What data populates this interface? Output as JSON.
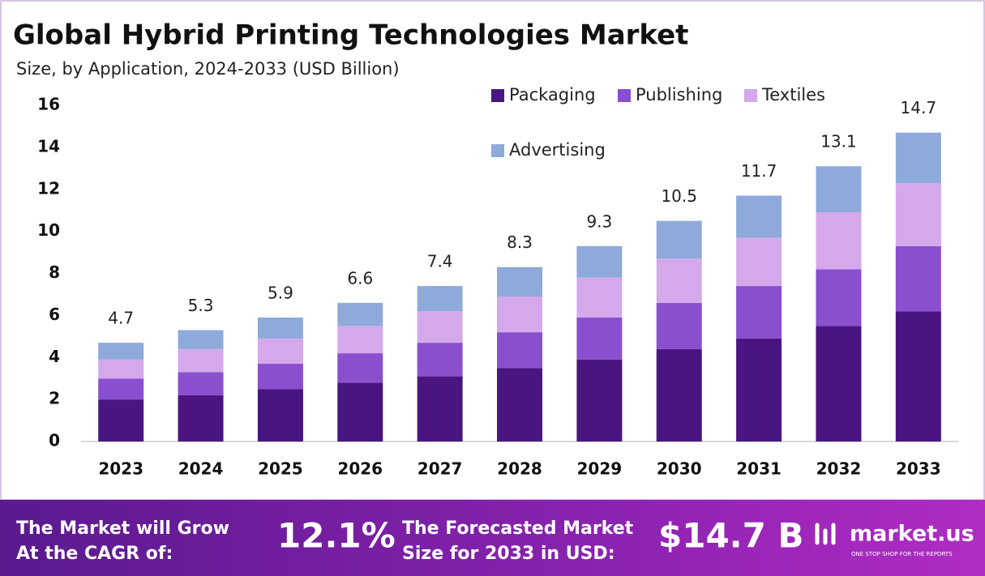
{
  "chart_data": {
    "type": "stacked_bar",
    "title": "Global Hybrid Printing Technologies Market",
    "subtitle": "Size, by Application, 2024-2033 (USD Billion)",
    "categories": [
      "2023",
      "2024",
      "2025",
      "2026",
      "2027",
      "2028",
      "2029",
      "2030",
      "2031",
      "2032",
      "2033"
    ],
    "series": [
      {
        "name": "Packaging",
        "color": "#4a1580",
        "values": [
          2.0,
          2.2,
          2.5,
          2.8,
          3.1,
          3.5,
          3.9,
          4.4,
          4.9,
          5.5,
          6.2
        ]
      },
      {
        "name": "Publishing",
        "color": "#8a4fcf",
        "values": [
          1.0,
          1.1,
          1.2,
          1.4,
          1.6,
          1.7,
          2.0,
          2.2,
          2.5,
          2.7,
          3.1
        ]
      },
      {
        "name": "Textiles",
        "color": "#d5a8ec",
        "values": [
          0.9,
          1.1,
          1.2,
          1.3,
          1.5,
          1.7,
          1.9,
          2.1,
          2.3,
          2.7,
          3.0
        ]
      },
      {
        "name": "Advertising",
        "color": "#8eaadb",
        "values": [
          0.8,
          0.9,
          1.0,
          1.1,
          1.2,
          1.4,
          1.5,
          1.8,
          2.0,
          2.2,
          2.4
        ]
      }
    ],
    "totals": [
      4.7,
      5.3,
      5.9,
      6.6,
      7.4,
      8.3,
      9.3,
      10.5,
      11.7,
      13.1,
      14.7
    ],
    "ylim": [
      0,
      16
    ],
    "yticks": [
      0,
      2,
      4,
      6,
      8,
      10,
      12,
      14,
      16
    ],
    "grid": false
  },
  "footer": {
    "cagr_label": [
      "The Market will Grow",
      "At the CAGR of:"
    ],
    "cagr_value": "12.1%",
    "forecast_label": [
      "The Forecasted Market",
      "Size for 2033 in USD:"
    ],
    "forecast_value": "$14.7 B",
    "brand": "market.us",
    "tagline": "ONE STOP SHOP FOR THE REPORTS"
  }
}
